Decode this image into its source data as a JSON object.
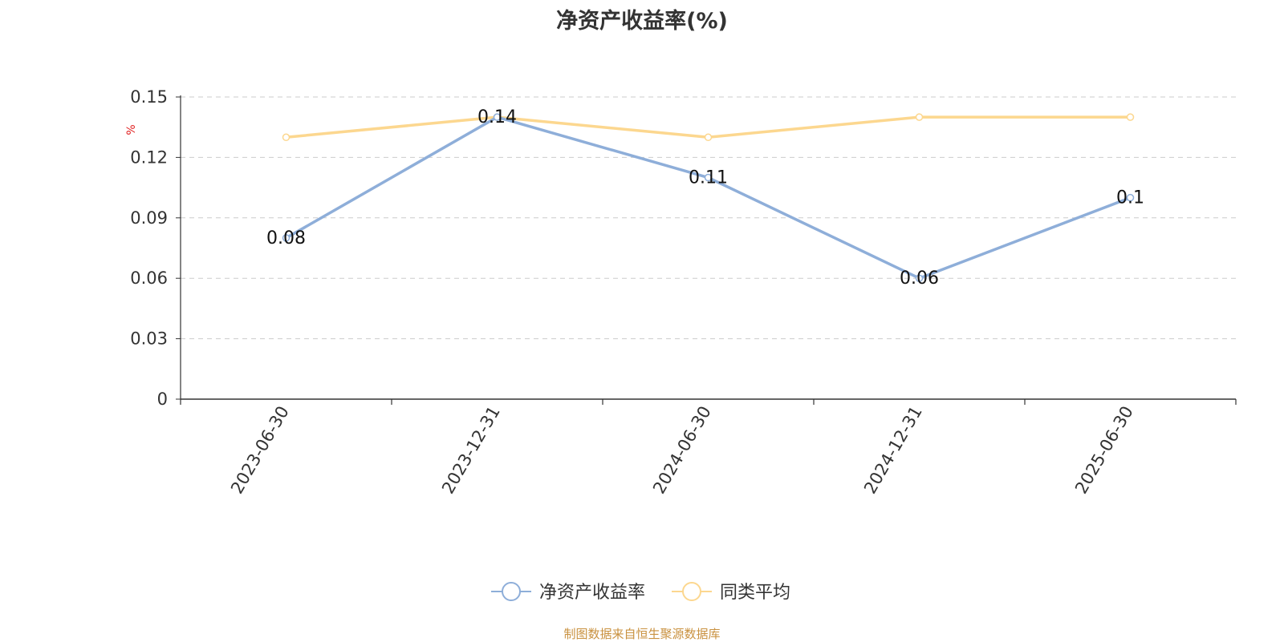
{
  "chart_data": {
    "type": "line",
    "title": "净资产收益率(%)",
    "ylabel": "%",
    "xlabel": "",
    "categories": [
      "2023-06-30",
      "2023-12-31",
      "2024-06-30",
      "2024-12-31",
      "2025-06-30"
    ],
    "yticks": [
      "0",
      "0.03",
      "0.06",
      "0.09",
      "0.12",
      "0.15"
    ],
    "ylim": [
      0,
      0.15
    ],
    "grid": true,
    "legend_position": "bottom",
    "series": [
      {
        "name": "净资产收益率",
        "values": [
          0.08,
          0.14,
          0.11,
          0.06,
          0.1
        ],
        "labels": [
          "0.08",
          "0.14",
          "0.11",
          "0.06",
          "0.1"
        ],
        "color": "#8eaed9"
      },
      {
        "name": "同类平均",
        "values": [
          0.13,
          0.14,
          0.13,
          0.14,
          0.14
        ],
        "color": "#fcd78f"
      }
    ]
  },
  "source": "制图数据来自恒生聚源数据库"
}
